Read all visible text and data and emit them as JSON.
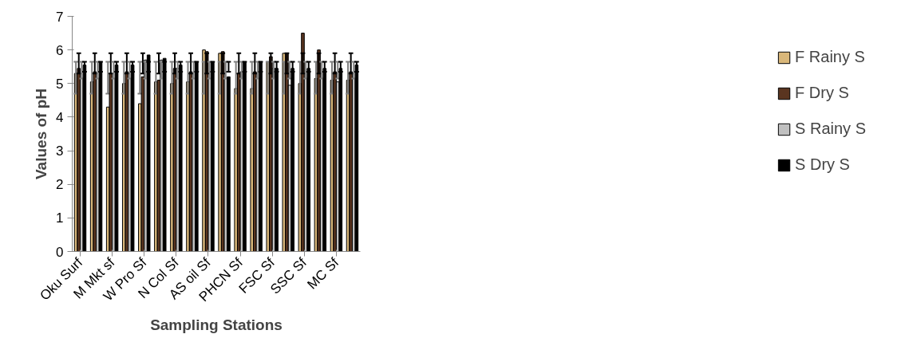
{
  "chart_data": {
    "type": "bar",
    "xlabel": "Sampling Stations",
    "ylabel": "Values of pH",
    "categories": [
      "Oku Surf",
      null,
      "M Mkt sf",
      null,
      "W Pro Sf",
      null,
      "N Col Sf",
      null,
      "AS oil Sf",
      null,
      "PHCN Sf",
      null,
      "FSC Sf",
      null,
      "SSC Sf",
      null,
      "MC Sf",
      null
    ],
    "series": [
      {
        "name": "F Rainy S",
        "color": "#d9b77a",
        "values": [
          5.3,
          5.05,
          4.3,
          5.0,
          4.4,
          5.05,
          5.0,
          5.05,
          6.0,
          5.9,
          4.85,
          4.85,
          5.65,
          5.9,
          5.0,
          5.15,
          5.1,
          5.1
        ],
        "errors": [
          [
            4.7,
            5.65
          ],
          [
            4.7,
            5.65
          ],
          [
            4.7,
            5.65
          ],
          [
            4.7,
            5.65
          ],
          [
            4.7,
            5.65
          ],
          [
            4.7,
            5.65
          ],
          [
            4.7,
            5.65
          ],
          [
            4.7,
            5.65
          ],
          [
            4.7,
            5.65
          ],
          [
            4.7,
            5.65
          ],
          [
            4.7,
            5.65
          ],
          [
            4.7,
            5.65
          ],
          [
            4.7,
            5.65
          ],
          [
            4.7,
            5.65
          ],
          [
            4.7,
            5.65
          ],
          [
            4.7,
            5.65
          ],
          [
            4.7,
            5.65
          ],
          [
            4.7,
            5.65
          ]
        ]
      },
      {
        "name": "F Dry S",
        "color": "#5a3520",
        "values": [
          5.45,
          5.35,
          5.3,
          5.35,
          5.2,
          5.1,
          5.45,
          5.35,
          5.95,
          5.95,
          5.3,
          5.35,
          5.8,
          5.9,
          6.5,
          6.0,
          5.35,
          5.35
        ],
        "errors": [
          [
            5.3,
            5.9
          ],
          [
            5.3,
            5.9
          ],
          [
            5.3,
            5.9
          ],
          [
            5.3,
            5.9
          ],
          [
            5.3,
            5.9
          ],
          [
            5.3,
            5.9
          ],
          [
            5.3,
            5.9
          ],
          [
            5.3,
            5.9
          ],
          [
            5.3,
            5.9
          ],
          [
            5.3,
            5.9
          ],
          [
            5.3,
            5.9
          ],
          [
            5.3,
            5.9
          ],
          [
            5.3,
            5.9
          ],
          [
            5.3,
            5.9
          ],
          [
            5.3,
            5.9
          ],
          [
            5.3,
            5.9
          ],
          [
            5.3,
            5.9
          ],
          [
            5.3,
            5.9
          ]
        ]
      },
      {
        "name": "S Rainy S",
        "color": "#c0c0c0",
        "values": [
          5.15,
          5.15,
          5.15,
          5.15,
          5.7,
          5.7,
          5.45,
          5.15,
          5.15,
          5.15,
          5.35,
          5.15,
          5.45,
          4.95,
          5.15,
          5.15,
          5.05,
          5.15
        ],
        "errors": [
          [
            5.15,
            5.65
          ],
          [
            5.15,
            5.65
          ],
          [
            5.15,
            5.65
          ],
          [
            5.15,
            5.65
          ],
          [
            5.15,
            5.65
          ],
          [
            5.15,
            5.65
          ],
          [
            5.15,
            5.65
          ],
          [
            5.15,
            5.65
          ],
          [
            5.15,
            5.65
          ],
          [
            5.15,
            5.65
          ],
          [
            5.15,
            5.65
          ],
          [
            5.15,
            5.65
          ],
          [
            5.15,
            5.65
          ],
          [
            5.15,
            5.65
          ],
          [
            5.15,
            5.65
          ],
          [
            5.15,
            5.65
          ],
          [
            5.15,
            5.65
          ],
          [
            5.15,
            5.65
          ]
        ]
      },
      {
        "name": "S Dry S",
        "color": "#000000",
        "values": [
          5.55,
          5.65,
          5.55,
          5.55,
          5.85,
          5.75,
          5.55,
          5.65,
          5.65,
          5.2,
          5.65,
          5.65,
          5.45,
          5.45,
          5.45,
          5.45,
          5.45,
          5.55
        ],
        "errors": [
          [
            5.35,
            5.65
          ],
          [
            5.35,
            5.65
          ],
          [
            5.35,
            5.65
          ],
          [
            5.35,
            5.65
          ],
          [
            5.35,
            5.65
          ],
          [
            5.35,
            5.65
          ],
          [
            5.35,
            5.65
          ],
          [
            5.35,
            5.65
          ],
          [
            5.35,
            5.65
          ],
          [
            5.35,
            5.65
          ],
          [
            5.35,
            5.65
          ],
          [
            5.35,
            5.65
          ],
          [
            5.35,
            5.65
          ],
          [
            5.35,
            5.65
          ],
          [
            5.35,
            5.65
          ],
          [
            5.35,
            5.65
          ],
          [
            5.35,
            5.65
          ],
          [
            5.35,
            5.65
          ]
        ]
      }
    ],
    "ylim": [
      0,
      7
    ],
    "yticks": [
      0,
      1,
      2,
      3,
      4,
      5,
      6,
      7
    ],
    "grid": false,
    "legend": "right"
  }
}
